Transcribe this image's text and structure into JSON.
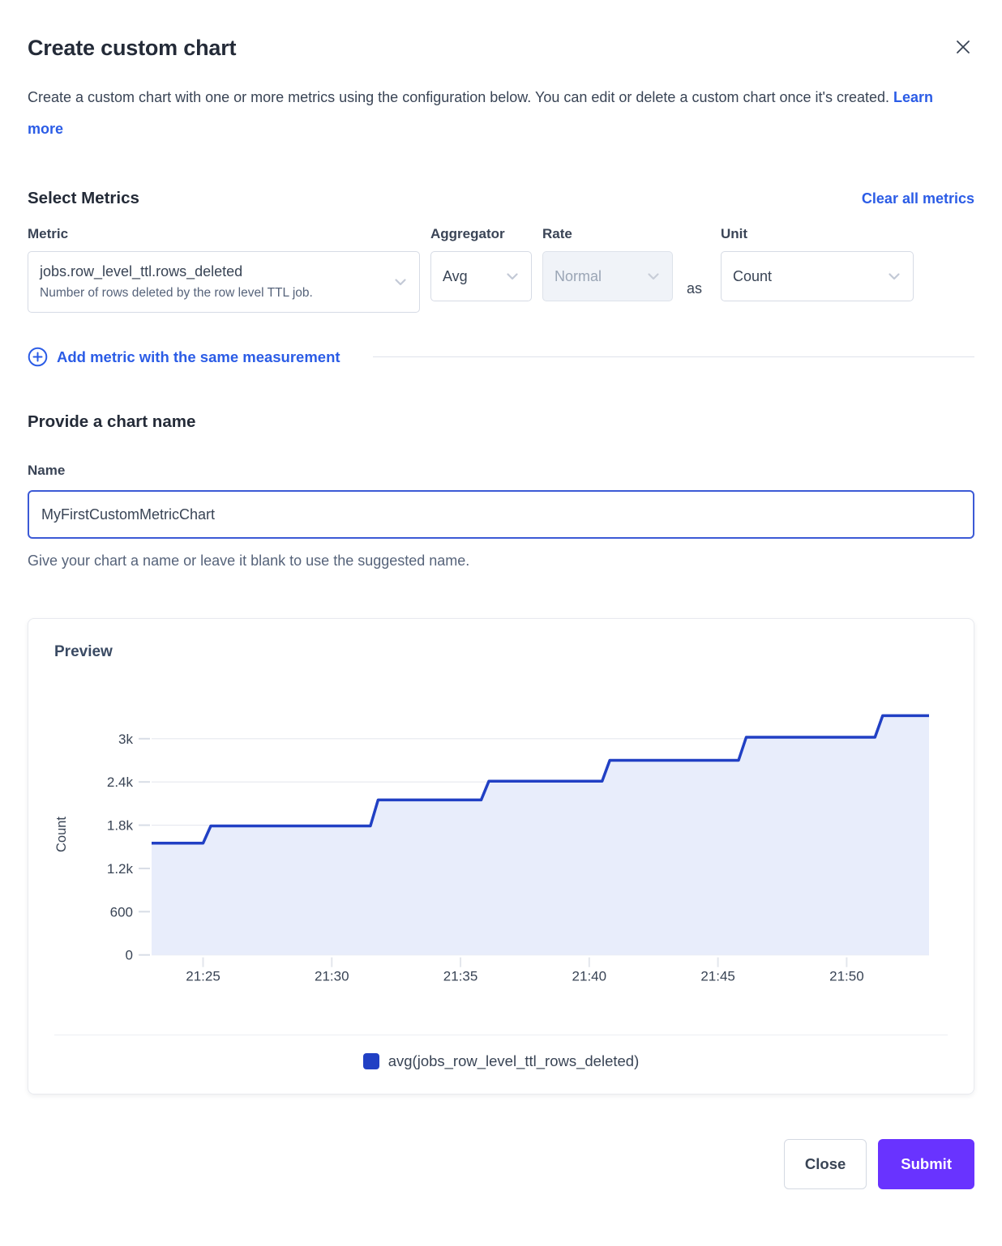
{
  "modal": {
    "title": "Create custom chart",
    "description": "Create a custom chart with one or more metrics using the configuration below. You can edit or delete a custom chart once it's created.",
    "learn_more_label": "Learn more"
  },
  "metrics": {
    "heading": "Select Metrics",
    "clear_all_label": "Clear all metrics",
    "metric_label": "Metric",
    "metric_value": "jobs.row_level_ttl.rows_deleted",
    "metric_description": "Number of rows deleted by the row level TTL job.",
    "aggregator_label": "Aggregator",
    "aggregator_value": "Avg",
    "rate_label": "Rate",
    "rate_value": "Normal",
    "as_label": "as",
    "unit_label": "Unit",
    "unit_value": "Count",
    "add_metric_label": "Add metric with the same measurement"
  },
  "chart_name": {
    "heading": "Provide a chart name",
    "name_label": "Name",
    "value": "MyFirstCustomMetricChart",
    "hint": "Give your chart a name or leave it blank to use the suggested name."
  },
  "preview": {
    "heading": "Preview",
    "legend_label": "avg(jobs_row_level_ttl_rows_deleted)"
  },
  "footer": {
    "close_label": "Close",
    "submit_label": "Submit"
  },
  "colors": {
    "accent_blue": "#2b5ce6",
    "line_blue": "#2140c4",
    "fill_blue": "#e8edfb",
    "submit_purple": "#6933ff",
    "axis_text": "#394455",
    "grid_line": "#e6e9ef"
  },
  "chart_data": {
    "type": "area",
    "title": "Preview",
    "ylabel": "Count",
    "xlabel": "",
    "x_unit": "minutes after 21:00",
    "xlim": [
      23.0,
      53.2
    ],
    "ylim": [
      0,
      3560
    ],
    "grid": true,
    "legend_position": "bottom",
    "xticks": [
      {
        "v": 25,
        "label": "21:25"
      },
      {
        "v": 30,
        "label": "21:30"
      },
      {
        "v": 35,
        "label": "21:35"
      },
      {
        "v": 40,
        "label": "21:40"
      },
      {
        "v": 45,
        "label": "21:45"
      },
      {
        "v": 50,
        "label": "21:50"
      }
    ],
    "yticks": [
      {
        "v": 0,
        "label": "0"
      },
      {
        "v": 600,
        "label": "600"
      },
      {
        "v": 1200,
        "label": "1.2k"
      },
      {
        "v": 1800,
        "label": "1.8k"
      },
      {
        "v": 2400,
        "label": "2.4k"
      },
      {
        "v": 3000,
        "label": "3k"
      }
    ],
    "series": [
      {
        "name": "avg(jobs_row_level_ttl_rows_deleted)",
        "color": "#2140c4",
        "fill": "#e8edfb",
        "points": [
          [
            23.0,
            1550
          ],
          [
            25.0,
            1550
          ],
          [
            25.3,
            1790
          ],
          [
            31.5,
            1790
          ],
          [
            31.8,
            2150
          ],
          [
            35.8,
            2150
          ],
          [
            36.1,
            2410
          ],
          [
            40.5,
            2410
          ],
          [
            40.8,
            2700
          ],
          [
            45.8,
            2700
          ],
          [
            46.1,
            3020
          ],
          [
            51.1,
            3020
          ],
          [
            51.4,
            3320
          ],
          [
            53.2,
            3320
          ]
        ]
      }
    ]
  }
}
